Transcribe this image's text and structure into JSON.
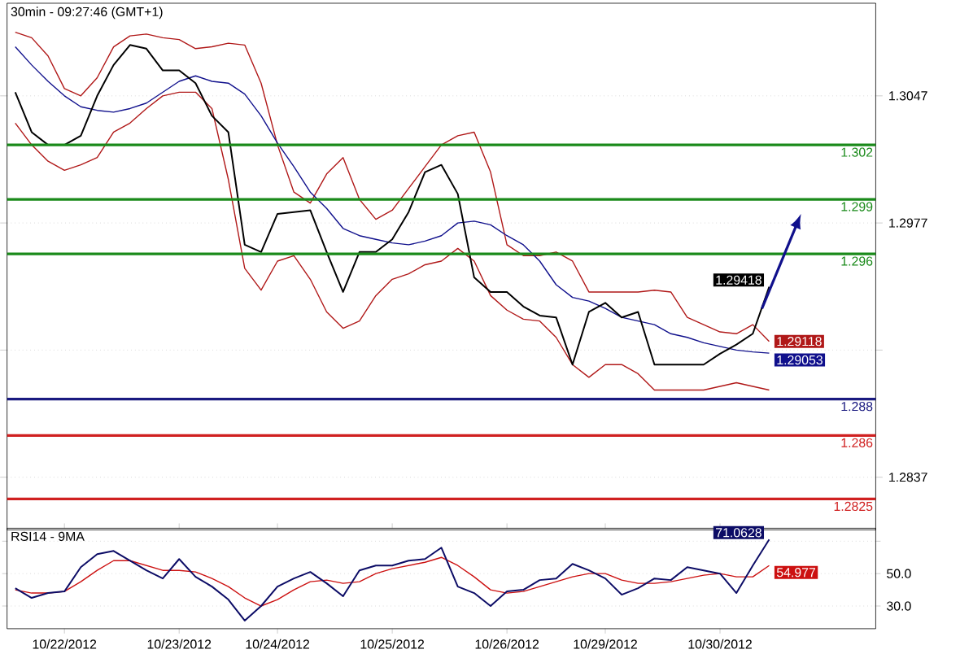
{
  "chart_data": [
    {
      "type": "line",
      "title": "30min - 09:27:46 (GMT+1)",
      "categories": [
        null,
        null,
        null,
        null,
        null,
        null,
        null,
        null,
        null,
        null,
        null,
        null,
        null,
        null,
        null,
        null,
        null,
        null,
        null,
        null,
        null,
        null,
        null,
        null,
        null,
        null,
        null,
        null,
        null,
        null,
        null,
        null,
        null,
        null,
        null,
        null,
        null,
        null,
        null,
        null,
        null,
        null,
        null,
        null,
        null,
        null,
        null,
        null,
        null,
        null,
        null,
        null,
        null
      ],
      "series": [
        {
          "color": "#b01818",
          "values": [
            1.3082,
            1.3079,
            1.3069,
            1.3051,
            1.3047,
            1.3057,
            1.3074,
            1.308,
            1.3081,
            1.3079,
            1.3078,
            1.3073,
            1.3074,
            1.3076,
            1.3075,
            1.3054,
            1.302,
            1.2994,
            1.2988,
            1.3004,
            1.3013,
            1.299,
            1.2979,
            1.2984,
            1.2996,
            1.3008,
            1.302,
            1.3025,
            1.3027,
            1.3005,
            1.2965,
            1.2959,
            1.2959,
            1.2961,
            1.2956,
            1.2939,
            1.2939,
            1.2939,
            1.2939,
            1.294,
            1.2939,
            1.2925,
            1.2921,
            1.2917,
            1.2916,
            1.2921,
            1.29118,
            null,
            null,
            null,
            null,
            null,
            null
          ],
          "value_labels": [
            null,
            null,
            null,
            null,
            null,
            null,
            null,
            null,
            null,
            null,
            null,
            null,
            null,
            null,
            null,
            null,
            null,
            null,
            null,
            null,
            null,
            null,
            null,
            null,
            null,
            null,
            null,
            null,
            null,
            null,
            null,
            null,
            null,
            null,
            null,
            null,
            null,
            null,
            null,
            null,
            null,
            null,
            null,
            null,
            null,
            null,
            "1.29118",
            null,
            null,
            null,
            null,
            null,
            null
          ]
        },
        {
          "color": "#b01818",
          "values": [
            1.3032,
            1.302,
            1.3011,
            1.3006,
            1.3009,
            1.3013,
            1.3027,
            1.3032,
            1.304,
            1.3047,
            1.3049,
            1.3049,
            1.304,
            1.3001,
            1.2952,
            1.294,
            1.2956,
            1.2959,
            1.2946,
            1.2928,
            1.2919,
            1.2923,
            1.2937,
            1.2946,
            1.2949,
            1.2954,
            1.2956,
            1.2963,
            1.2956,
            1.2937,
            1.2929,
            1.2924,
            1.2923,
            1.2914,
            1.2899,
            1.2892,
            1.2899,
            1.2899,
            1.2894,
            1.2885,
            1.2885,
            1.2885,
            1.2885,
            1.2887,
            1.2889,
            1.2887,
            1.2885,
            null,
            null,
            null,
            null,
            null,
            null
          ]
        },
        {
          "color": "#10108c",
          "values": [
            1.3074,
            1.3064,
            1.3055,
            1.3047,
            1.3041,
            1.3039,
            1.3038,
            1.304,
            1.3043,
            1.3049,
            1.3055,
            1.3058,
            1.3055,
            1.3054,
            1.3048,
            1.3036,
            1.3021,
            1.3008,
            1.2994,
            1.2985,
            1.2974,
            1.297,
            1.2968,
            1.2966,
            1.2965,
            1.2967,
            1.297,
            1.2977,
            1.2978,
            1.2976,
            1.297,
            1.2965,
            1.2956,
            1.2943,
            1.2936,
            1.2934,
            1.293,
            1.2925,
            1.2923,
            1.2921,
            1.2916,
            1.2914,
            1.2911,
            1.2909,
            1.2907,
            1.2906,
            1.29053,
            null,
            null,
            null,
            null,
            null,
            null
          ],
          "value_labels": [
            null,
            null,
            null,
            null,
            null,
            null,
            null,
            null,
            null,
            null,
            null,
            null,
            null,
            null,
            null,
            null,
            null,
            null,
            null,
            null,
            null,
            null,
            null,
            null,
            null,
            null,
            null,
            null,
            null,
            null,
            null,
            null,
            null,
            null,
            null,
            null,
            null,
            null,
            null,
            null,
            null,
            null,
            null,
            null,
            null,
            null,
            "1.29053",
            null,
            null,
            null,
            null,
            null,
            null
          ]
        },
        {
          "color": "#000000",
          "values": [
            1.3049,
            1.3027,
            1.302,
            1.302,
            1.3025,
            1.3047,
            1.3064,
            1.3075,
            1.3073,
            1.3061,
            1.3061,
            1.3054,
            1.3036,
            1.3027,
            1.2965,
            1.2961,
            1.2982,
            1.2983,
            1.2984,
            1.2961,
            1.2939,
            1.2961,
            1.2961,
            1.2968,
            1.2983,
            1.3005,
            1.3009,
            1.2993,
            1.2947,
            1.2939,
            1.2939,
            1.2931,
            1.2926,
            1.2925,
            1.2899,
            1.2928,
            1.2933,
            1.2925,
            1.2928,
            1.2899,
            1.2899,
            1.2899,
            1.2899,
            1.2905,
            1.291,
            1.2916,
            1.29418,
            null,
            null,
            null,
            null,
            null,
            null
          ],
          "value_labels": [
            null,
            null,
            null,
            null,
            null,
            null,
            null,
            null,
            null,
            null,
            null,
            null,
            null,
            null,
            null,
            null,
            null,
            null,
            null,
            null,
            null,
            null,
            null,
            null,
            null,
            null,
            null,
            null,
            null,
            null,
            null,
            null,
            null,
            null,
            null,
            null,
            null,
            null,
            null,
            null,
            null,
            null,
            null,
            null,
            null,
            null,
            "1.29418",
            null,
            null,
            null,
            null,
            null,
            null
          ]
        }
      ],
      "ylim": [
        1.2808,
        1.3098
      ],
      "yticks": [
        1.3047,
        1.2977,
        {
          "value": 1.2907,
          "label": null
        },
        1.2837
      ],
      "tick_labels": "y",
      "grid": "y",
      "marker": "none",
      "line_style": "solid",
      "ref_lines": [
        {
          "axis": "y",
          "value": 1.302,
          "label": "1.302",
          "color": "#1a8a1a"
        },
        {
          "axis": "y",
          "value": 1.299,
          "label": "1.299",
          "color": "#1a8a1a"
        },
        {
          "axis": "y",
          "value": 1.296,
          "label": "1.296",
          "color": "#1a8a1a"
        },
        {
          "axis": "y",
          "value": 1.288,
          "label": "1.288",
          "color": "#1a1a80"
        },
        {
          "axis": "y",
          "value": 1.286,
          "label": "1.286",
          "color": "#d02020"
        },
        {
          "axis": "y",
          "value": 1.2825,
          "label": "1.2825",
          "color": "#d02020"
        }
      ]
    },
    {
      "type": "line",
      "title": "RSI14 - 9MA",
      "categories": [
        null,
        null,
        null,
        "10/22/2012",
        null,
        null,
        null,
        null,
        null,
        null,
        "10/23/2012",
        null,
        null,
        null,
        null,
        null,
        "10/24/2012",
        null,
        null,
        null,
        null,
        null,
        null,
        "10/25/2012",
        null,
        null,
        null,
        null,
        null,
        null,
        "10/26/2012",
        null,
        null,
        null,
        null,
        null,
        "10/29/2012",
        null,
        null,
        null,
        null,
        null,
        null,
        "10/30/2012",
        null,
        null,
        null,
        null,
        null,
        null,
        null,
        null,
        null
      ],
      "series": [
        {
          "color": "#cc1010",
          "values": [
            40,
            38,
            38,
            39,
            45,
            52,
            58,
            58,
            55,
            52,
            52,
            51,
            47,
            42,
            35,
            30,
            34,
            40,
            45,
            46,
            44,
            45,
            50,
            53,
            55,
            57,
            60,
            55,
            48,
            40,
            38,
            39,
            42,
            45,
            48,
            50,
            50,
            46,
            44,
            44,
            45,
            47,
            49,
            50,
            48,
            48,
            54.977,
            null,
            null,
            null,
            null,
            null,
            null
          ],
          "value_labels": [
            null,
            null,
            null,
            null,
            null,
            null,
            null,
            null,
            null,
            null,
            null,
            null,
            null,
            null,
            null,
            null,
            null,
            null,
            null,
            null,
            null,
            null,
            null,
            null,
            null,
            null,
            null,
            null,
            null,
            null,
            null,
            null,
            null,
            null,
            null,
            null,
            null,
            null,
            null,
            null,
            null,
            null,
            null,
            null,
            null,
            null,
            "54.977",
            null,
            null,
            null,
            null,
            null,
            null
          ]
        },
        {
          "color": "#0c0c66",
          "values": [
            41,
            35,
            38,
            39,
            54,
            62,
            64,
            58,
            52,
            47,
            59,
            48,
            42,
            34,
            21,
            30,
            42,
            47,
            51,
            44,
            36,
            52,
            55,
            55,
            58,
            59,
            66,
            42,
            38,
            30,
            39,
            40,
            46,
            47,
            56,
            52,
            47,
            37,
            41,
            47,
            46,
            54,
            52,
            50,
            38,
            55,
            71.0628,
            null,
            null,
            null,
            null,
            null,
            null
          ],
          "value_labels": [
            null,
            null,
            null,
            null,
            null,
            null,
            null,
            null,
            null,
            null,
            null,
            null,
            null,
            null,
            null,
            null,
            null,
            null,
            null,
            null,
            null,
            null,
            null,
            null,
            null,
            null,
            null,
            null,
            null,
            null,
            null,
            null,
            null,
            null,
            null,
            null,
            null,
            null,
            null,
            null,
            null,
            null,
            null,
            null,
            null,
            null,
            "71.0628",
            null,
            null,
            null,
            null,
            null,
            null
          ]
        }
      ],
      "ylim": [
        16,
        78
      ],
      "yticks": [
        {
          "value": 30,
          "label": "30.0"
        },
        {
          "value": 50,
          "label": "50.0"
        },
        {
          "value": 70,
          "label": null
        }
      ],
      "grid": "y",
      "marker": "none",
      "line_style": "solid"
    }
  ]
}
